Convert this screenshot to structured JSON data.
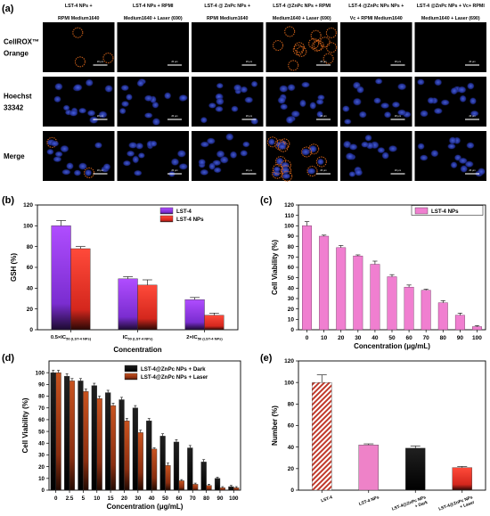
{
  "panel_a": {
    "label": "(a)",
    "columns": [
      [
        "LST-4 NPs +",
        "RPMI Medium1640"
      ],
      [
        "LST-4 NPs + RPMI",
        "Medium1640 + Laser (690)"
      ],
      [
        "LST-4 @ ZnPc NPs +",
        "RPMI Medium1640"
      ],
      [
        "LST-4 @ZnPc  NPs + RPMI",
        "Medium1640 + Laser (690)"
      ],
      [
        "LST-4 @ZnPc  NPs NPs +",
        "Vc + RPMI Medium1640"
      ],
      [
        "LST-4 @ZnPc  NPs + Vc+ RPMI",
        "Medium1640 + Laser (690)"
      ]
    ],
    "rows": [
      [
        "CellROX™",
        "Orange"
      ],
      [
        "Hoechst",
        "33342"
      ],
      [
        "Merge"
      ]
    ],
    "scale_text": "20 μm"
  },
  "chart_data": [
    {
      "panel": "(b)",
      "type": "bar",
      "categories": [
        "0.5×IC50 (LST-4 NPs)",
        "IC50 (LST-4 NPs)",
        "2×IC50 (LST-4 NPs)"
      ],
      "series": [
        {
          "name": "LST-4",
          "values": [
            100,
            49,
            29
          ],
          "errors": [
            5,
            2,
            2
          ]
        },
        {
          "name": "LST-4 NPs",
          "values": [
            78,
            43,
            14
          ],
          "errors": [
            2,
            5,
            2
          ]
        }
      ],
      "xlabel": "Concentration",
      "ylabel": "GSH (%)",
      "ylim": [
        0,
        120
      ],
      "yticks": [
        0,
        20,
        40,
        60,
        80,
        100,
        120
      ],
      "legend_position": "top-right"
    },
    {
      "panel": "(c)",
      "type": "bar",
      "categories": [
        "0",
        "10",
        "20",
        "30",
        "40",
        "50",
        "60",
        "70",
        "80",
        "90",
        "100"
      ],
      "series": [
        {
          "name": "LST-4 NPs",
          "values": [
            100,
            90,
            79,
            71,
            63,
            51,
            41,
            38,
            26,
            14,
            3
          ],
          "errors": [
            4,
            1,
            2,
            1,
            3,
            2,
            2,
            1,
            2,
            2,
            1
          ]
        }
      ],
      "xlabel": "Concentration (μg/mL)",
      "ylabel": "Cell Viability (%)",
      "ylim": [
        0,
        120
      ],
      "yticks": [
        0,
        10,
        20,
        30,
        40,
        50,
        60,
        70,
        80,
        90,
        100,
        110,
        120
      ],
      "legend_position": "top-right"
    },
    {
      "panel": "(d)",
      "type": "bar",
      "categories": [
        "0",
        "2.5",
        "5",
        "10",
        "15",
        "20",
        "30",
        "40",
        "50",
        "60",
        "70",
        "80",
        "90",
        "100"
      ],
      "series": [
        {
          "name": "LST-4@ZnPc NPs + Dark",
          "values": [
            100,
            97,
            93,
            89,
            83,
            77,
            70,
            59,
            46,
            41,
            36,
            24,
            10,
            3
          ],
          "errors": [
            2,
            2,
            2,
            2,
            2,
            2,
            2,
            2,
            2,
            2,
            2,
            2,
            1,
            1
          ]
        },
        {
          "name": "LST-4@ZnPc NPs + Laser",
          "values": [
            100,
            93,
            84,
            78,
            72,
            59,
            49,
            35,
            21,
            8,
            5,
            4,
            2,
            2
          ],
          "errors": [
            2,
            2,
            2,
            2,
            2,
            2,
            2,
            1,
            2,
            1,
            1,
            1,
            1,
            1
          ]
        }
      ],
      "xlabel": "Concentration (μg/mL)",
      "ylabel": "Cell Viability (%)",
      "ylim": [
        0,
        110
      ],
      "yticks": [
        0,
        10,
        20,
        30,
        40,
        50,
        60,
        70,
        80,
        90,
        100
      ],
      "legend_position": "top-right"
    },
    {
      "panel": "(e)",
      "type": "bar",
      "categories": [
        "LST-4",
        "LST-4 NPs",
        "LST-4@ZnPc NPs + Dark",
        "LST-4@ZnPc NPs + Laser"
      ],
      "values": [
        100,
        42,
        39,
        21
      ],
      "errors": [
        7,
        1,
        2,
        1
      ],
      "colors": [
        "#c0392b",
        "#ee82c8",
        "#000000",
        "#e8141c"
      ],
      "xlabel": "",
      "ylabel": "Number (%)",
      "ylim": [
        0,
        120
      ],
      "yticks": [
        0,
        20,
        40,
        60,
        80,
        100,
        120
      ]
    }
  ]
}
